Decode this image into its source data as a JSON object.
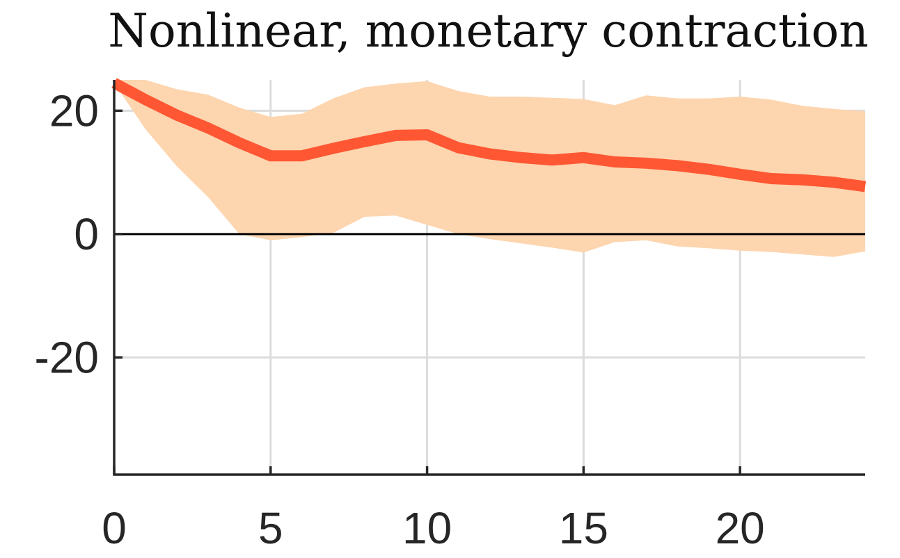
{
  "chart_data": {
    "type": "line",
    "title": "Nonlinear, monetary contraction",
    "xlabel": "",
    "ylabel": "",
    "xlim": [
      0,
      24
    ],
    "ylim": [
      -39,
      25
    ],
    "grid": true,
    "x_ticks": [
      0,
      5,
      10,
      15,
      20
    ],
    "y_ticks": [
      -20,
      0,
      20
    ],
    "zero_line": true,
    "x": [
      0,
      1,
      2,
      3,
      4,
      5,
      6,
      7,
      8,
      9,
      10,
      11,
      12,
      13,
      14,
      15,
      16,
      17,
      18,
      19,
      20,
      21,
      22,
      23,
      24
    ],
    "series": [
      {
        "values": [
          24.5,
          21.8,
          19.3,
          17.2,
          14.8,
          12.7,
          12.7,
          13.9,
          15.0,
          16.0,
          16.1,
          14.0,
          13.0,
          12.4,
          12.0,
          12.4,
          11.7,
          11.5,
          11.1,
          10.5,
          9.7,
          9.0,
          8.8,
          8.4,
          7.7
        ],
        "color": "#ff5733"
      }
    ],
    "band": {
      "lower": [
        24.5,
        17.0,
        11.0,
        6.0,
        0.0,
        -1.0,
        -0.5,
        0.2,
        2.8,
        3.0,
        1.5,
        0.0,
        -0.8,
        -1.5,
        -2.2,
        -3.0,
        -1.3,
        -1.0,
        -2.0,
        -2.3,
        -2.7,
        -2.9,
        -3.3,
        -3.7,
        -2.8
      ],
      "upper": [
        25.0,
        25.0,
        23.5,
        22.6,
        20.5,
        19.0,
        19.5,
        22.0,
        23.8,
        24.4,
        24.8,
        23.2,
        22.3,
        22.3,
        22.1,
        21.9,
        20.9,
        22.5,
        22.0,
        22.0,
        22.3,
        21.8,
        20.8,
        20.3,
        19.9
      ],
      "color": "#fdd5af"
    },
    "colors": {
      "grid": "#dcdcdc",
      "axis": "#262626",
      "zero_line": "#000000"
    }
  }
}
